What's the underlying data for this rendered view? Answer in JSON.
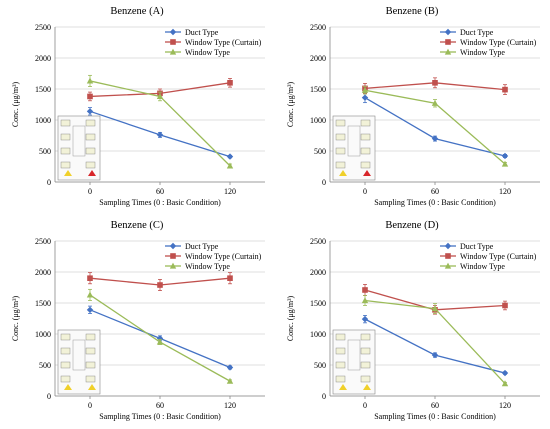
{
  "figure": {
    "series_colors": {
      "Duct Type": "#4472C4",
      "Window Type (Curtain)": "#C0504D",
      "Window Type": "#9BBB59"
    }
  },
  "chart_data": [
    {
      "type": "line",
      "title": "Benzene (A)",
      "xlabel": "Sampling Times (0 : Basic Condition)",
      "ylabel": "Conc. (μg/m³)",
      "categories": [
        "0",
        "60",
        "120"
      ],
      "ylim": [
        0,
        2500
      ],
      "yticks": [
        "0",
        "500",
        "1000",
        "1500",
        "2000",
        "2500"
      ],
      "grid": true,
      "legend": "top-right",
      "series": [
        {
          "name": "Duct Type",
          "color": "#4472C4",
          "marker": "diamond",
          "values": [
            1140,
            760,
            410
          ],
          "errors": [
            60,
            40,
            20
          ]
        },
        {
          "name": "Window Type (Curtain)",
          "color": "#C0504D",
          "marker": "square",
          "values": [
            1380,
            1430,
            1600
          ],
          "errors": [
            70,
            70,
            70
          ]
        },
        {
          "name": "Window Type",
          "color": "#9BBB59",
          "marker": "triangle",
          "values": [
            1630,
            1380,
            260
          ],
          "errors": [
            90,
            70,
            30
          ]
        }
      ],
      "inset": {
        "highlight_markers": [
          "red"
        ]
      }
    },
    {
      "type": "line",
      "title": "Benzene (B)",
      "xlabel": "Sampling Times (0 : Basic Condition)",
      "ylabel": "Conc. (μg/m³)",
      "categories": [
        "0",
        "60",
        "120"
      ],
      "ylim": [
        0,
        2500
      ],
      "yticks": [
        "0",
        "500",
        "1000",
        "1500",
        "2000",
        "2500"
      ],
      "grid": true,
      "legend": "top-right",
      "series": [
        {
          "name": "Duct Type",
          "color": "#4472C4",
          "marker": "diamond",
          "values": [
            1360,
            700,
            420
          ],
          "errors": [
            80,
            40,
            25
          ]
        },
        {
          "name": "Window Type (Curtain)",
          "color": "#C0504D",
          "marker": "square",
          "values": [
            1510,
            1600,
            1490
          ],
          "errors": [
            80,
            80,
            80
          ]
        },
        {
          "name": "Window Type",
          "color": "#9BBB59",
          "marker": "triangle",
          "values": [
            1480,
            1270,
            290
          ],
          "errors": [
            60,
            60,
            25
          ]
        }
      ],
      "inset": {
        "highlight_markers": [
          "red"
        ]
      }
    },
    {
      "type": "line",
      "title": "Benzene  (C)",
      "xlabel": "Sampling Times (0 : Basic Condition)",
      "ylabel": "Conc. (μg/m³)",
      "categories": [
        "0",
        "60",
        "120"
      ],
      "ylim": [
        0,
        2500
      ],
      "yticks": [
        "0",
        "500",
        "1000",
        "1500",
        "2000",
        "2500"
      ],
      "grid": true,
      "legend": "top-right",
      "series": [
        {
          "name": "Duct Type",
          "color": "#4472C4",
          "marker": "diamond",
          "values": [
            1390,
            930,
            460
          ],
          "errors": [
            60,
            40,
            25
          ]
        },
        {
          "name": "Window Type (Curtain)",
          "color": "#C0504D",
          "marker": "square",
          "values": [
            1900,
            1790,
            1900
          ],
          "errors": [
            90,
            90,
            90
          ]
        },
        {
          "name": "Window Type",
          "color": "#9BBB59",
          "marker": "triangle",
          "values": [
            1630,
            870,
            240
          ],
          "errors": [
            90,
            40,
            20
          ]
        }
      ],
      "inset": {
        "highlight_markers": []
      }
    },
    {
      "type": "line",
      "title": "Benzene (D)",
      "xlabel": "Sampling Times (0 : Basic Condition)",
      "ylabel": "Conc. (μg/m³)",
      "categories": [
        "0",
        "60",
        "120"
      ],
      "ylim": [
        0,
        2500
      ],
      "yticks": [
        "0",
        "500",
        "1000",
        "1500",
        "2000",
        "2500"
      ],
      "grid": true,
      "legend": "top-right",
      "series": [
        {
          "name": "Duct Type",
          "color": "#4472C4",
          "marker": "diamond",
          "values": [
            1240,
            660,
            370
          ],
          "errors": [
            60,
            35,
            20
          ]
        },
        {
          "name": "Window Type (Curtain)",
          "color": "#C0504D",
          "marker": "square",
          "values": [
            1710,
            1390,
            1460
          ],
          "errors": [
            90,
            70,
            70
          ]
        },
        {
          "name": "Window Type",
          "color": "#9BBB59",
          "marker": "triangle",
          "values": [
            1540,
            1410,
            200
          ],
          "errors": [
            80,
            80,
            20
          ]
        }
      ],
      "inset": {
        "highlight_markers": []
      }
    }
  ]
}
